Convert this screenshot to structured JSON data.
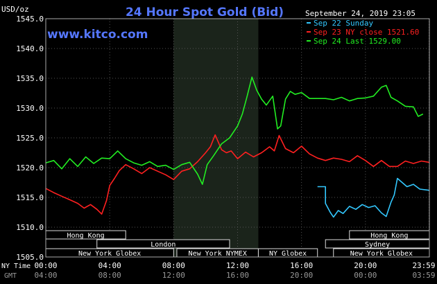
{
  "chart_data": {
    "type": "line",
    "title": "24 Hour Spot Gold (Bid)",
    "ylabel": "USD/oz",
    "watermark": "www.kitco.com",
    "timestamp": "September 24, 2019 23:05",
    "ylim": [
      1505,
      1545
    ],
    "yticks": [
      {
        "value": 1545,
        "label": "1545.0"
      },
      {
        "value": 1540,
        "label": "1540.0"
      },
      {
        "value": 1535,
        "label": "1535.0"
      },
      {
        "value": 1530,
        "label": "1530.0"
      },
      {
        "value": 1525,
        "label": "1525.0"
      },
      {
        "value": 1520,
        "label": "1520.0"
      },
      {
        "value": 1515,
        "label": "1515.0"
      },
      {
        "value": 1510,
        "label": "1510.0"
      },
      {
        "value": 1505,
        "label": "1505.0"
      }
    ],
    "xlim": [
      0,
      24
    ],
    "ny_time_label": "NY Time",
    "gmt_label": "GMT",
    "xticks_ny": [
      {
        "value": 0,
        "label": "00:00"
      },
      {
        "value": 4,
        "label": "04:00"
      },
      {
        "value": 8,
        "label": "08:00"
      },
      {
        "value": 12,
        "label": "12:00"
      },
      {
        "value": 16,
        "label": "16:00"
      },
      {
        "value": 20,
        "label": "20:00"
      },
      {
        "value": 23.98,
        "label": "23:59"
      }
    ],
    "xticks_gmt": [
      {
        "value": 0,
        "label": "04:00"
      },
      {
        "value": 4,
        "label": "08:00"
      },
      {
        "value": 8,
        "label": "12:00"
      },
      {
        "value": 12,
        "label": "16:00"
      },
      {
        "value": 16,
        "label": "20:00"
      },
      {
        "value": 20,
        "label": "00:00"
      },
      {
        "value": 23.98,
        "label": "03:59"
      }
    ],
    "highlight_x": [
      8,
      13.3
    ],
    "legend": [
      {
        "label": "Sep 22 Sunday",
        "color": "#33c8ff"
      },
      {
        "label": "Sep 23 NY close 1521.60",
        "color": "#ff2020"
      },
      {
        "label": "Sep 24 Last 1529.00",
        "color": "#22ee22"
      }
    ],
    "sessions": [
      {
        "name": "Hong Kong",
        "start": 0,
        "end": 5,
        "row": 0
      },
      {
        "name": "London",
        "start": 3.2,
        "end": 11.5,
        "row": 1
      },
      {
        "name": "New York Globex",
        "start": 0,
        "end": 8,
        "row": 2
      },
      {
        "name": "New York NYMEX",
        "start": 8.2,
        "end": 13.3,
        "row": 2
      },
      {
        "name": "NY Globex",
        "start": 13.3,
        "end": 17,
        "row": 2
      },
      {
        "name": "Hong Kong",
        "start": 19,
        "end": 24,
        "row": 0
      },
      {
        "name": "Sydney",
        "start": 17.5,
        "end": 24,
        "row": 1
      },
      {
        "name": "New York Globex",
        "start": 18,
        "end": 24,
        "row": 2
      }
    ],
    "series": [
      {
        "color": "#33c8ff",
        "x": [
          17,
          17.5,
          17.5,
          17.8,
          18,
          18.3,
          18.6,
          19,
          19.4,
          19.8,
          20.2,
          20.6,
          21,
          21.3,
          21.6,
          21.8,
          22,
          22.3,
          22.6,
          23,
          23.4,
          23.98
        ],
        "y": [
          1516.8,
          1516.8,
          1514,
          1512.5,
          1511.7,
          1512.8,
          1512.3,
          1513.5,
          1513,
          1513.8,
          1513.3,
          1513.6,
          1512.4,
          1511.8,
          1514.2,
          1515.4,
          1518.2,
          1517.5,
          1516.8,
          1517.2,
          1516.4,
          1516.2
        ]
      },
      {
        "color": "#ff2020",
        "x": [
          0,
          0.5,
          1,
          1.5,
          2,
          2.4,
          2.8,
          3.2,
          3.5,
          3.8,
          4,
          4.3,
          4.6,
          5,
          5.5,
          6,
          6.5,
          7,
          7.5,
          8,
          8.5,
          9,
          9.5,
          10,
          10.3,
          10.6,
          11,
          11.3,
          11.6,
          12,
          12.5,
          13,
          13.5,
          14,
          14.3,
          14.6,
          15,
          15.5,
          16,
          16.5,
          17,
          17.5,
          18,
          18.5,
          19,
          19.5,
          20,
          20.5,
          21,
          21.5,
          22,
          22.5,
          23,
          23.5,
          23.98
        ],
        "y": [
          1516.5,
          1515.8,
          1515.2,
          1514.6,
          1514.0,
          1513.2,
          1513.8,
          1513.0,
          1512.2,
          1514.5,
          1517.0,
          1518.2,
          1519.5,
          1520.5,
          1519.8,
          1519.0,
          1520.0,
          1519.4,
          1518.8,
          1518.0,
          1519.4,
          1519.8,
          1521.0,
          1522.5,
          1523.5,
          1525.5,
          1523.0,
          1522.5,
          1522.8,
          1521.5,
          1522.6,
          1521.8,
          1522.5,
          1523.5,
          1522.8,
          1525.4,
          1523.2,
          1522.5,
          1523.6,
          1522.3,
          1521.6,
          1521.2,
          1521.6,
          1521.4,
          1521.0,
          1522.0,
          1521.2,
          1520.2,
          1521.2,
          1520.2,
          1520.2,
          1521.1,
          1520.7,
          1521.1,
          1520.9
        ]
      },
      {
        "color": "#22ee22",
        "x": [
          0,
          0.5,
          1,
          1.5,
          2,
          2.5,
          3,
          3.5,
          4,
          4.5,
          5,
          5.5,
          6,
          6.5,
          7,
          7.5,
          8,
          8.5,
          9,
          9.5,
          9.8,
          10.1,
          10.5,
          11,
          11.5,
          12,
          12.3,
          12.6,
          12.9,
          13.2,
          13.5,
          13.8,
          14.2,
          14.5,
          14.7,
          15,
          15.3,
          15.6,
          16,
          16.5,
          17,
          17.5,
          18,
          18.5,
          19,
          19.5,
          20,
          20.5,
          21,
          21.3,
          21.6,
          22,
          22.5,
          23,
          23.3,
          23.6
        ],
        "y": [
          1520.8,
          1521.2,
          1519.8,
          1521.5,
          1520.2,
          1521.8,
          1520.7,
          1521.6,
          1521.5,
          1522.8,
          1521.5,
          1520.8,
          1520.4,
          1521.0,
          1520.2,
          1520.4,
          1519.7,
          1520.5,
          1520.9,
          1518.9,
          1517.2,
          1520.5,
          1522.0,
          1524.0,
          1525.0,
          1527.0,
          1529.0,
          1532.0,
          1535.2,
          1533.0,
          1531.5,
          1530.5,
          1532.0,
          1526.5,
          1527.0,
          1531.5,
          1532.8,
          1532.3,
          1532.6,
          1531.6,
          1531.6,
          1531.6,
          1531.4,
          1531.8,
          1531.2,
          1531.6,
          1531.7,
          1532.0,
          1533.5,
          1533.8,
          1531.8,
          1531.2,
          1530.3,
          1530.2,
          1528.6,
          1529.0
        ]
      }
    ]
  }
}
